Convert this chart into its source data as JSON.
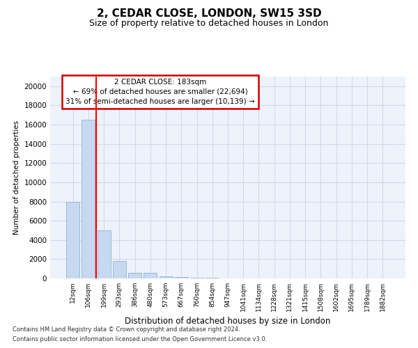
{
  "title_line1": "2, CEDAR CLOSE, LONDON, SW15 3SD",
  "title_line2": "Size of property relative to detached houses in London",
  "xlabel": "Distribution of detached houses by size in London",
  "ylabel": "Number of detached properties",
  "categories": [
    "12sqm",
    "106sqm",
    "199sqm",
    "293sqm",
    "386sqm",
    "480sqm",
    "573sqm",
    "667sqm",
    "760sqm",
    "854sqm",
    "947sqm",
    "1041sqm",
    "1134sqm",
    "1228sqm",
    "1321sqm",
    "1415sqm",
    "1508sqm",
    "1602sqm",
    "1695sqm",
    "1789sqm",
    "1882sqm"
  ],
  "values": [
    8000,
    16500,
    5000,
    1800,
    550,
    550,
    200,
    150,
    100,
    50,
    0,
    0,
    0,
    0,
    0,
    0,
    0,
    0,
    0,
    0,
    0
  ],
  "bar_color": "#c6d9f0",
  "bar_edge_color": "#8fb4d9",
  "red_line_x": 1.5,
  "annotation_text": "2 CEDAR CLOSE: 183sqm\n← 69% of detached houses are smaller (22,694)\n31% of semi-detached houses are larger (10,139) →",
  "annotation_box_facecolor": "#ffffff",
  "annotation_box_edgecolor": "#cc0000",
  "ylim": [
    0,
    21000
  ],
  "yticks": [
    0,
    2000,
    4000,
    6000,
    8000,
    10000,
    12000,
    14000,
    16000,
    18000,
    20000
  ],
  "grid_color": "#d0d8e8",
  "axes_bg_color": "#eef2fa",
  "footer_line1": "Contains HM Land Registry data © Crown copyright and database right 2024.",
  "footer_line2": "Contains public sector information licensed under the Open Government Licence v3.0."
}
